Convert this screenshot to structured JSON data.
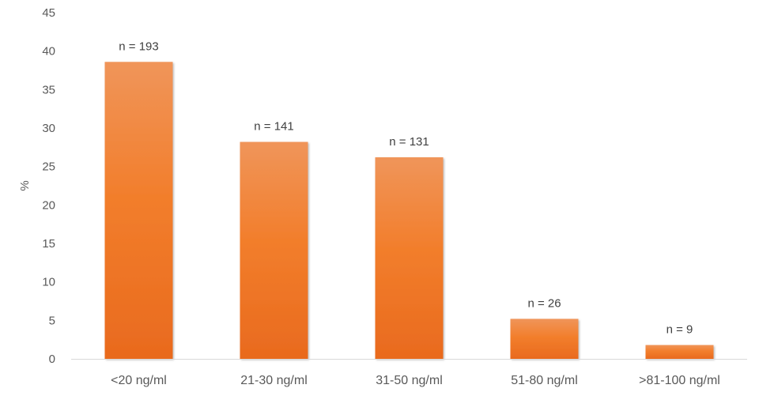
{
  "chart_data": {
    "type": "bar",
    "categories": [
      "<20 ng/ml",
      "21-30 ng/ml",
      "31-50 ng/ml",
      "51-80 ng/ml",
      ">81-100 ng/ml"
    ],
    "values": [
      38.6,
      28.2,
      26.2,
      5.2,
      1.8
    ],
    "data_labels": [
      "n = 193",
      "n = 141",
      "n = 131",
      "n = 26",
      "n = 9"
    ],
    "ylabel": "%",
    "ylim": [
      0,
      45
    ],
    "yticks": [
      0,
      5,
      10,
      15,
      20,
      25,
      30,
      35,
      40,
      45
    ],
    "grid": false,
    "legend": "none",
    "colors": {
      "bar_top": "#f0955a",
      "bar_bottom": "#e96a1e",
      "axis": "#d9d9d9"
    }
  }
}
